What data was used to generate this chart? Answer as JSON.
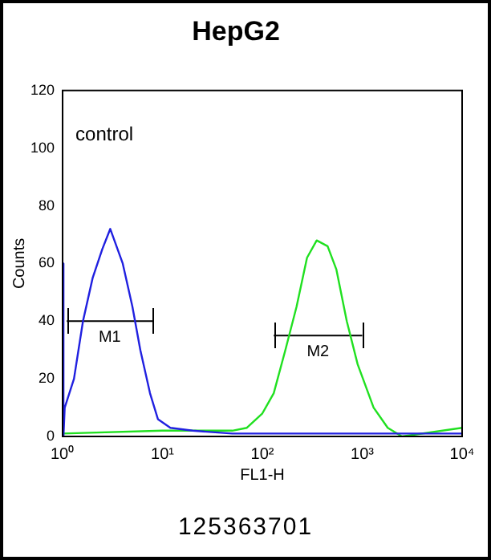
{
  "chart_data": {
    "type": "line",
    "title": "HepG2",
    "xlabel": "FL1-H",
    "ylabel": "Counts",
    "log": "x",
    "xlim": [
      1,
      10000
    ],
    "ylim": [
      0,
      120
    ],
    "xticks": [
      {
        "value": 1,
        "label": "10⁰"
      },
      {
        "value": 10,
        "label": "10¹"
      },
      {
        "value": 100,
        "label": "10²"
      },
      {
        "value": 1000,
        "label": "10³"
      },
      {
        "value": 10000,
        "label": "10⁴"
      }
    ],
    "yticks": [
      0,
      20,
      40,
      60,
      80,
      100,
      120
    ],
    "grid": false,
    "legend": false,
    "marker": "none",
    "line_style": "solid",
    "series": [
      {
        "color": "#2020e0",
        "x": [
          1,
          1.02,
          1.05,
          1.3,
          1.6,
          2,
          2.5,
          3,
          3.3,
          4,
          5,
          6,
          7.5,
          9,
          12,
          20,
          50,
          10000
        ],
        "values": [
          60,
          0,
          10,
          20,
          40,
          55,
          65,
          72,
          68,
          60,
          45,
          30,
          15,
          6,
          3,
          2,
          1,
          1
        ]
      },
      {
        "color": "#20e020",
        "x": [
          1,
          10,
          50,
          70,
          100,
          130,
          170,
          220,
          280,
          350,
          450,
          550,
          700,
          900,
          1300,
          1800,
          2500,
          10000
        ],
        "values": [
          1,
          2,
          2,
          3,
          8,
          15,
          30,
          45,
          62,
          68,
          66,
          58,
          40,
          25,
          10,
          3,
          0,
          3
        ]
      },
      {
        "name": "M1",
        "color": "#000000",
        "x": [
          1.1,
          8
        ],
        "values": [
          40,
          40
        ]
      },
      {
        "name": "M2",
        "color": "#000000",
        "x": [
          130,
          1000
        ],
        "values": [
          35,
          35
        ]
      }
    ],
    "annotations": [
      "control",
      "125363701"
    ]
  }
}
